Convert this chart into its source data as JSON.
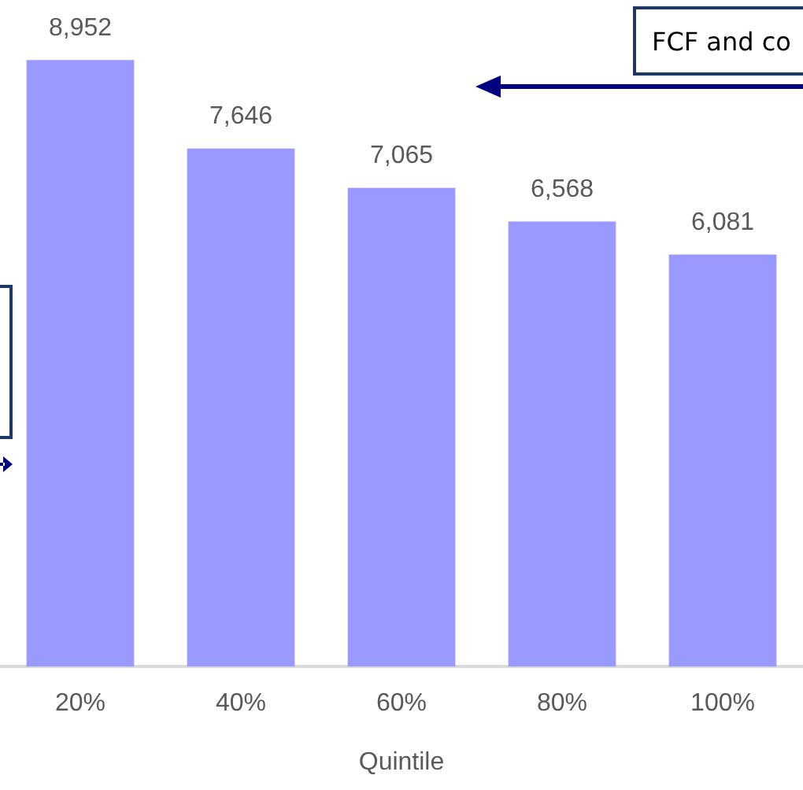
{
  "chart_data": {
    "type": "bar",
    "xlabel": "Quintile",
    "categories": [
      "20%",
      "40%",
      "60%",
      "80%",
      "100%"
    ],
    "values": [
      8952,
      7646,
      7065,
      6568,
      6081
    ],
    "value_labels": [
      "8,952",
      "7,646",
      "7,065",
      "6,568",
      "6,081"
    ],
    "color": "#9999ff",
    "grid": false,
    "legend": false,
    "annotations": [
      "FCF and co"
    ]
  }
}
